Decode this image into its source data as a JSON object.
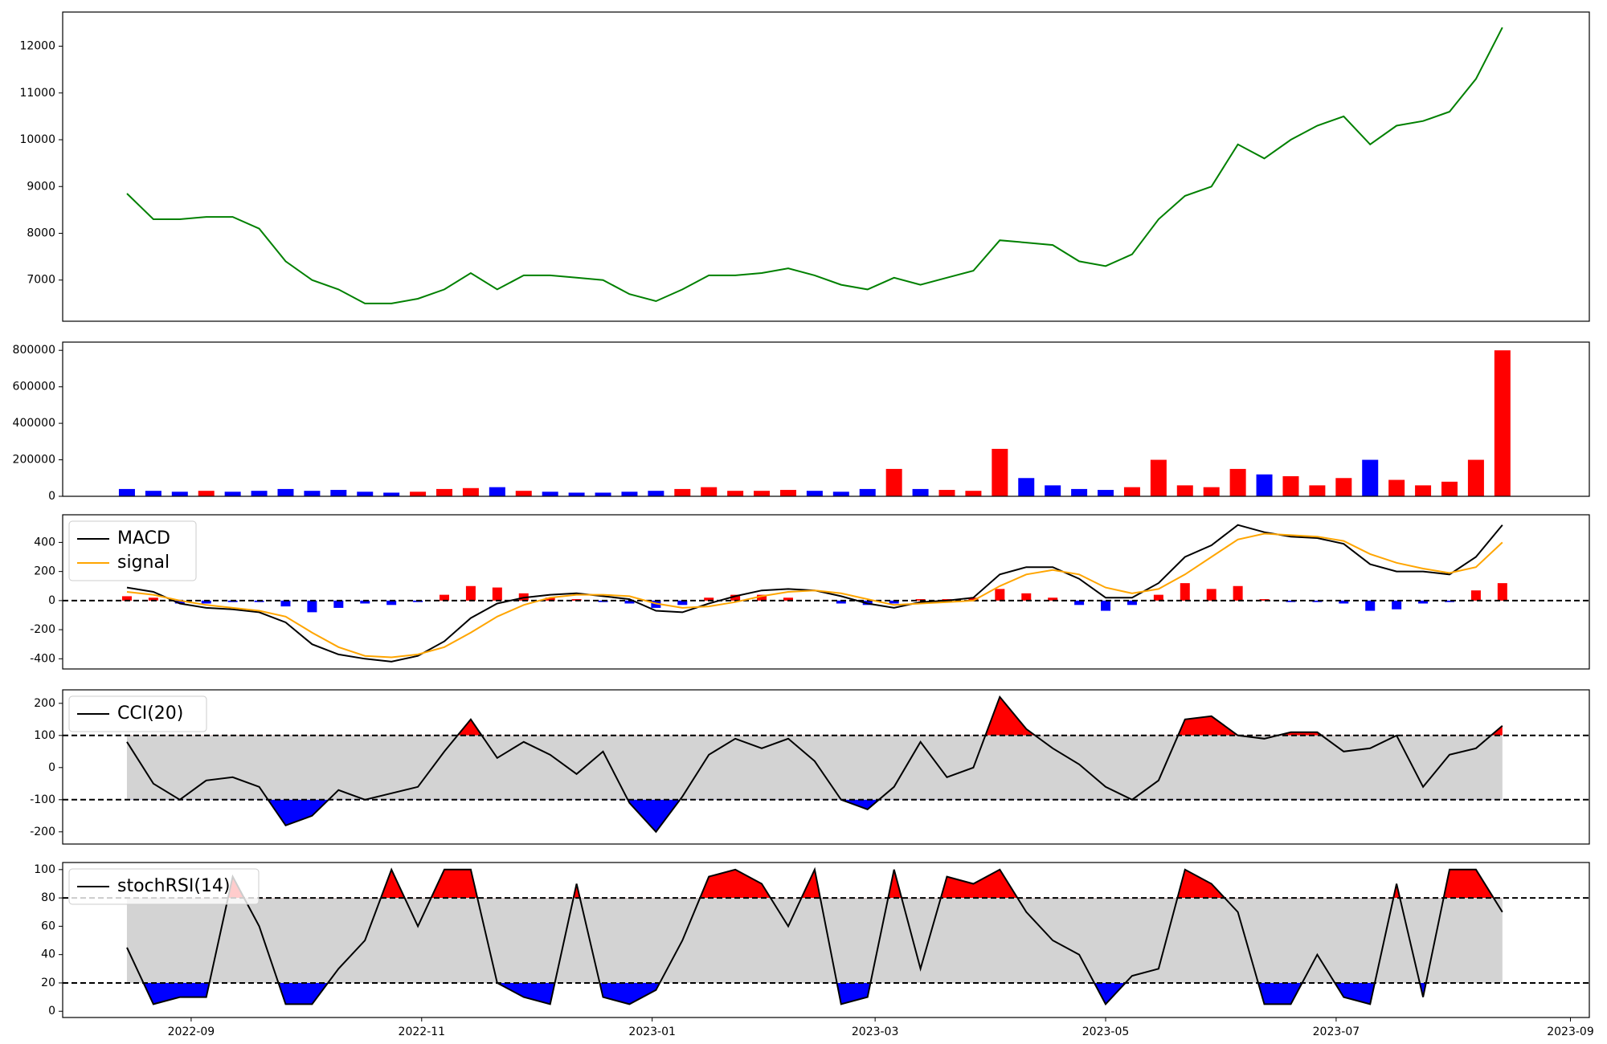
{
  "chart_data": [
    {
      "type": "line",
      "series": [
        {
          "color": "green",
          "values": [
            8850,
            8300,
            8300,
            8350,
            8350,
            8100,
            7400,
            7000,
            6800,
            6500,
            6500,
            6600,
            6800,
            7150,
            6800,
            7100,
            7100,
            7050,
            7000,
            6700,
            6550,
            6800,
            7100,
            7100,
            7150,
            7250,
            7100,
            6900,
            6800,
            7050,
            6900,
            7050,
            7200,
            7850,
            7800,
            7750,
            7400,
            7300,
            7550,
            8300,
            8800,
            9000,
            9900,
            9600,
            10000,
            10300,
            10500,
            9900,
            10300,
            10400,
            10600,
            11300,
            12400
          ]
        }
      ],
      "ylim": [
        6120,
        12730
      ],
      "yticks": [
        7000,
        8000,
        9000,
        10000,
        11000,
        12000
      ]
    },
    {
      "type": "bar",
      "values": [
        40000,
        30000,
        25000,
        30000,
        25000,
        30000,
        40000,
        30000,
        35000,
        25000,
        20000,
        25000,
        40000,
        45000,
        50000,
        30000,
        25000,
        20000,
        20000,
        25000,
        30000,
        40000,
        50000,
        30000,
        30000,
        35000,
        30000,
        25000,
        40000,
        150000,
        40000,
        35000,
        30000,
        260000,
        100000,
        60000,
        40000,
        35000,
        50000,
        200000,
        60000,
        50000,
        150000,
        120000,
        110000,
        60000,
        100000,
        200000,
        90000,
        60000,
        80000,
        200000,
        800000
      ],
      "bar_colors": [
        "blue",
        "blue",
        "blue",
        "red",
        "blue",
        "blue",
        "blue",
        "blue",
        "blue",
        "blue",
        "blue",
        "red",
        "red",
        "red",
        "blue",
        "red",
        "blue",
        "blue",
        "blue",
        "blue",
        "blue",
        "red",
        "red",
        "red",
        "red",
        "red",
        "blue",
        "blue",
        "blue",
        "red",
        "blue",
        "red",
        "red",
        "red",
        "blue",
        "blue",
        "blue",
        "blue",
        "red",
        "red",
        "red",
        "red",
        "red",
        "blue",
        "red",
        "red",
        "red",
        "blue",
        "red",
        "red",
        "red",
        "red",
        "red"
      ],
      "ylim": [
        0,
        845000
      ],
      "yticks": [
        0,
        200000,
        400000,
        600000,
        800000
      ]
    },
    {
      "type": "macd",
      "series": [
        {
          "name": "MACD",
          "color": "black",
          "values": [
            90,
            60,
            -20,
            -50,
            -60,
            -80,
            -150,
            -300,
            -370,
            -400,
            -420,
            -380,
            -280,
            -120,
            -20,
            20,
            40,
            50,
            30,
            10,
            -70,
            -80,
            -20,
            30,
            70,
            80,
            70,
            30,
            -20,
            -50,
            -10,
            0,
            20,
            180,
            230,
            230,
            150,
            20,
            20,
            120,
            300,
            380,
            520,
            470,
            440,
            430,
            390,
            250,
            200,
            200,
            180,
            300,
            520
          ]
        },
        {
          "name": "signal",
          "color": "orange",
          "values": [
            60,
            40,
            0,
            -30,
            -50,
            -70,
            -110,
            -220,
            -320,
            -380,
            -390,
            -370,
            -320,
            -220,
            -110,
            -30,
            20,
            40,
            40,
            30,
            -20,
            -50,
            -40,
            -10,
            30,
            60,
            70,
            50,
            10,
            -30,
            -20,
            -10,
            0,
            100,
            180,
            210,
            180,
            90,
            50,
            80,
            180,
            300,
            420,
            460,
            450,
            440,
            410,
            320,
            260,
            220,
            190,
            230,
            400
          ]
        }
      ],
      "histogram": {
        "values": [
          30,
          20,
          -20,
          -20,
          -10,
          -10,
          -40,
          -80,
          -50,
          -20,
          -30,
          -10,
          40,
          100,
          90,
          50,
          20,
          10,
          -10,
          -20,
          -50,
          -30,
          20,
          40,
          40,
          20,
          0,
          -20,
          -30,
          -20,
          10,
          10,
          20,
          80,
          50,
          20,
          -30,
          -70,
          -30,
          40,
          120,
          80,
          100,
          10,
          -10,
          -10,
          -20,
          -70,
          -60,
          -20,
          -10,
          70,
          120
        ],
        "pos_color": "red",
        "neg_color": "blue"
      },
      "thresholds": [
        0
      ],
      "legend": "upper left",
      "ylim": [
        -470,
        590
      ],
      "yticks": [
        -400,
        -200,
        0,
        200,
        400
      ]
    },
    {
      "type": "oscillator",
      "series": [
        {
          "name": "CCI(20)",
          "color": "black",
          "values": [
            80,
            -50,
            -100,
            -40,
            -30,
            -60,
            -180,
            -150,
            -70,
            -100,
            -80,
            -60,
            50,
            150,
            30,
            80,
            40,
            -20,
            50,
            -110,
            -200,
            -90,
            40,
            90,
            60,
            90,
            20,
            -100,
            -130,
            -60,
            80,
            -30,
            0,
            220,
            120,
            60,
            10,
            -60,
            -100,
            -40,
            150,
            160,
            100,
            90,
            110,
            110,
            50,
            60,
            100,
            -60,
            40,
            60,
            130
          ]
        }
      ],
      "thresholds": [
        -100,
        100
      ],
      "band_color": "lightgray",
      "upper_color": "red",
      "lower_color": "blue",
      "legend": "upper left",
      "ylim": [
        -238,
        242
      ],
      "yticks": [
        -200,
        -100,
        0,
        100,
        200
      ]
    },
    {
      "type": "oscillator",
      "series": [
        {
          "name": "stochRSI(14)",
          "color": "black",
          "values": [
            45,
            5,
            10,
            10,
            95,
            60,
            5,
            5,
            30,
            50,
            100,
            60,
            100,
            100,
            20,
            10,
            5,
            90,
            10,
            5,
            15,
            50,
            95,
            100,
            90,
            60,
            100,
            5,
            10,
            100,
            30,
            95,
            90,
            100,
            70,
            50,
            40,
            5,
            25,
            30,
            100,
            90,
            70,
            5,
            5,
            40,
            10,
            5,
            90,
            10,
            100,
            100,
            70
          ]
        }
      ],
      "thresholds": [
        20,
        80
      ],
      "band_color": "lightgray",
      "upper_color": "red",
      "lower_color": "blue",
      "legend": "upper left",
      "ylim": [
        -4.4,
        105
      ],
      "yticks": [
        0,
        20,
        40,
        60,
        80,
        100
      ],
      "x": [
        "2022-08-15",
        "2022-08-22",
        "2022-08-29",
        "2022-09-05",
        "2022-09-12",
        "2022-09-19",
        "2022-09-26",
        "2022-10-03",
        "2022-10-10",
        "2022-10-17",
        "2022-10-24",
        "2022-10-31",
        "2022-11-07",
        "2022-11-14",
        "2022-11-21",
        "2022-11-28",
        "2022-12-05",
        "2022-12-12",
        "2022-12-19",
        "2022-12-26",
        "2023-01-02",
        "2023-01-09",
        "2023-01-16",
        "2023-01-23",
        "2023-01-30",
        "2023-02-06",
        "2023-02-13",
        "2023-02-20",
        "2023-02-27",
        "2023-03-06",
        "2023-03-13",
        "2023-03-20",
        "2023-03-27",
        "2023-04-03",
        "2023-04-10",
        "2023-04-17",
        "2023-04-24",
        "2023-05-01",
        "2023-05-08",
        "2023-05-15",
        "2023-05-22",
        "2023-05-29",
        "2023-06-05",
        "2023-06-12",
        "2023-06-19",
        "2023-06-26",
        "2023-07-03",
        "2023-07-10",
        "2023-07-17",
        "2023-07-24",
        "2023-07-31",
        "2023-08-07",
        "2023-08-14"
      ],
      "xlim": [
        "2022-07-29",
        "2023-09-06"
      ],
      "xticks": [
        {
          "value": "2022-09-01",
          "label": "2022-09"
        },
        {
          "value": "2022-11-01",
          "label": "2022-11"
        },
        {
          "value": "2023-01-01",
          "label": "2023-01"
        },
        {
          "value": "2023-03-01",
          "label": "2023-03"
        },
        {
          "value": "2023-05-01",
          "label": "2023-05"
        },
        {
          "value": "2023-07-01",
          "label": "2023-07"
        },
        {
          "value": "2023-09-01",
          "label": "2023-09"
        }
      ]
    }
  ]
}
